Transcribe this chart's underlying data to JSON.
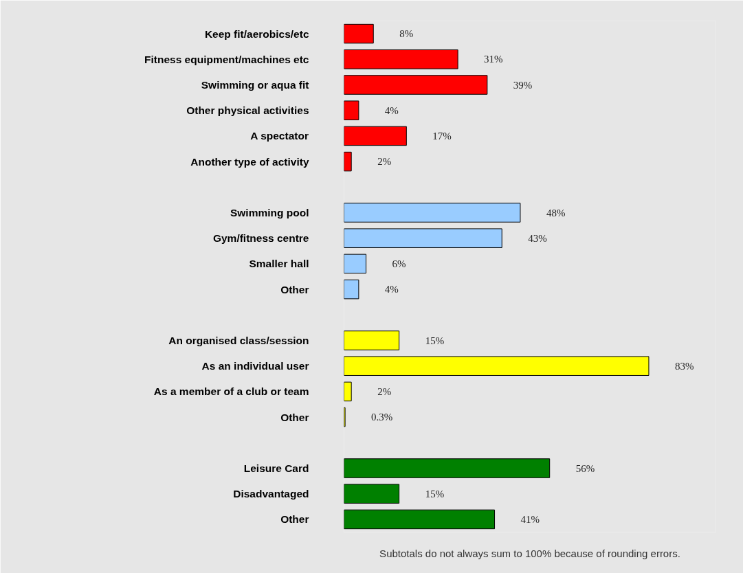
{
  "chart_data": {
    "type": "bar",
    "orientation": "horizontal",
    "categories": [
      "Keep fit/aerobics/etc",
      "Fitness equipment/machines etc",
      "Swimming or aqua fit",
      "Other physical activities",
      "A spectator",
      "Another type of activity",
      null,
      "Swimming pool",
      "Gym/fitness centre",
      "Smaller hall",
      "Other",
      null,
      "An organised class/session",
      "As an individual user",
      "As a member of a club or team",
      "Other",
      null,
      "Leisure Card",
      "Disadvantaged",
      "Other"
    ],
    "values": [
      8,
      31,
      39,
      4,
      17,
      2,
      null,
      48,
      43,
      6,
      4,
      null,
      15,
      83,
      2,
      0.3,
      null,
      56,
      15,
      41
    ],
    "colors": [
      "#ff0000",
      "#ff0000",
      "#ff0000",
      "#ff0000",
      "#ff0000",
      "#ff0000",
      null,
      "#99ccff",
      "#99ccff",
      "#99ccff",
      "#99ccff",
      null,
      "#ffff00",
      "#ffff00",
      "#ffff00",
      "#ffff00",
      null,
      "#008000",
      "#008000",
      "#008000"
    ],
    "value_labels": [
      "8%",
      "31%",
      "39%",
      "4%",
      "17%",
      "2%",
      null,
      "48%",
      "43%",
      "6%",
      "4%",
      null,
      "15%",
      "83%",
      "2%",
      "0.3%",
      null,
      "56%",
      "15%",
      "41%"
    ],
    "annotations": [
      "Subtotals do not always sum to 100% because of rounding errors."
    ]
  }
}
